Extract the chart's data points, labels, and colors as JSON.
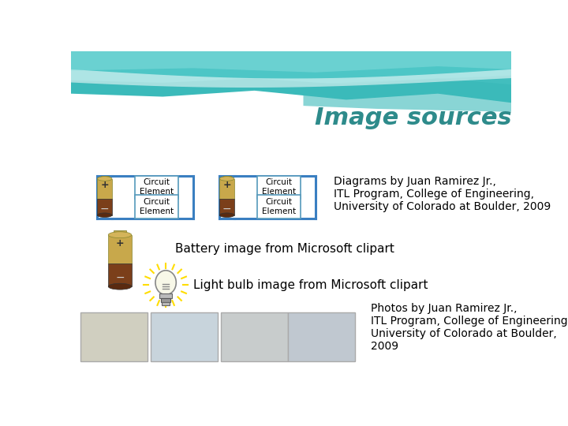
{
  "title": "Image sources",
  "title_fontsize": 22,
  "title_color": "#2E8B8B",
  "bg_color": "#FFFFFF",
  "diagrams_text": "Diagrams by Juan Ramirez Jr.,\nITL Program, College of Engineering,\nUniversity of Colorado at Boulder, 2009",
  "battery_text": "Battery image from Microsoft clipart",
  "lightbulb_text": "Light bulb image from Microsoft clipart",
  "photos_text": "Photos by Juan Ramirez Jr.,\nITL Program, College of Engineering,\nUniversity of Colorado at Boulder,\n2009",
  "circuit_label": "Circuit\nElement",
  "wire_color": "#3A7FC1",
  "box_edge_color": "#5599BB",
  "battery_gold": "#C8A84B",
  "battery_brown": "#7B3F1A",
  "teal_dark": "#3BBABA",
  "teal_mid": "#55CCCC",
  "teal_light": "#88DDDD",
  "text_fontsize": 11
}
